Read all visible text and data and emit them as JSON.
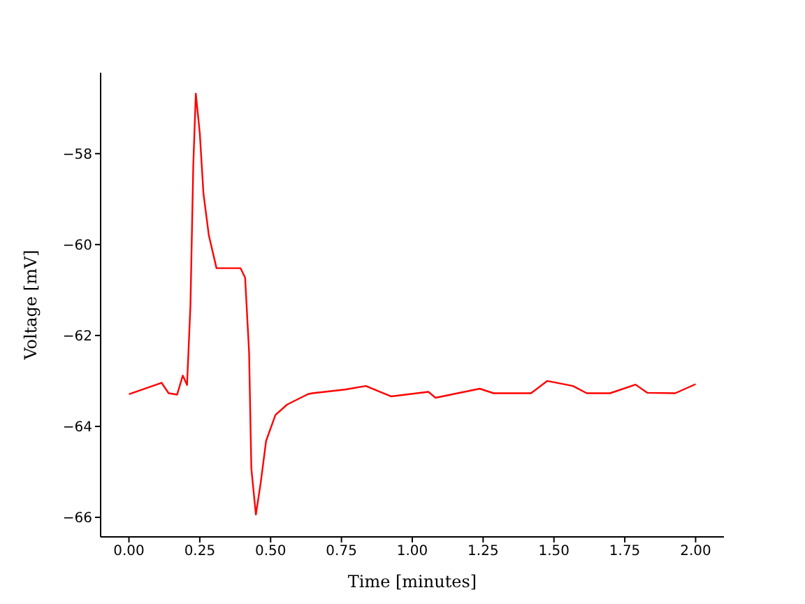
{
  "chart_data": {
    "type": "line",
    "xlabel": "Time [minutes]",
    "ylabel": "Voltage [mV]",
    "xlim": [
      -0.1,
      2.1
    ],
    "ylim": [
      -66.43,
      -56.22
    ],
    "xticks": [
      {
        "value": 0,
        "label": "0.00"
      },
      {
        "value": 0.25,
        "label": "0.25"
      },
      {
        "value": 0.5,
        "label": "0.50"
      },
      {
        "value": 0.75,
        "label": "0.75"
      },
      {
        "value": 1,
        "label": "1.00"
      },
      {
        "value": 1.25,
        "label": "1.25"
      },
      {
        "value": 1.5,
        "label": "1.50"
      },
      {
        "value": 1.75,
        "label": "1.75"
      },
      {
        "value": 2,
        "label": "2.00"
      }
    ],
    "yticks": [
      {
        "value": -66,
        "label": "−66"
      },
      {
        "value": -64,
        "label": "−64"
      },
      {
        "value": -62,
        "label": "−62"
      },
      {
        "value": -60,
        "label": "−60"
      },
      {
        "value": -58,
        "label": "−58"
      }
    ],
    "grid": false,
    "legend": false,
    "marker": "none",
    "line_style": "solid",
    "series": [
      {
        "color": "#ff0000",
        "x": [
          0,
          0.115,
          0.14,
          0.17,
          0.19,
          0.205,
          0.217,
          0.227,
          0.236,
          0.25,
          0.263,
          0.282,
          0.309,
          0.394,
          0.41,
          0.424,
          0.432,
          0.448,
          0.465,
          0.484,
          0.517,
          0.558,
          0.632,
          0.647,
          0.762,
          0.836,
          0.926,
          1.057,
          1.082,
          1.238,
          1.287,
          1.419,
          1.476,
          1.567,
          1.616,
          1.698,
          1.788,
          1.829,
          1.928,
          2.0
        ],
        "values": [
          -63.29,
          -63.04,
          -63.27,
          -63.3,
          -62.88,
          -63.09,
          -61.34,
          -58.27,
          -56.68,
          -57.55,
          -58.88,
          -59.8,
          -60.52,
          -60.52,
          -60.73,
          -62.37,
          -64.93,
          -65.94,
          -65.24,
          -64.32,
          -63.75,
          -63.52,
          -63.29,
          -63.27,
          -63.19,
          -63.11,
          -63.34,
          -63.24,
          -63.37,
          -63.17,
          -63.27,
          -63.27,
          -63.0,
          -63.11,
          -63.27,
          -63.27,
          -63.08,
          -63.26,
          -63.27,
          -63.07
        ]
      }
    ]
  }
}
